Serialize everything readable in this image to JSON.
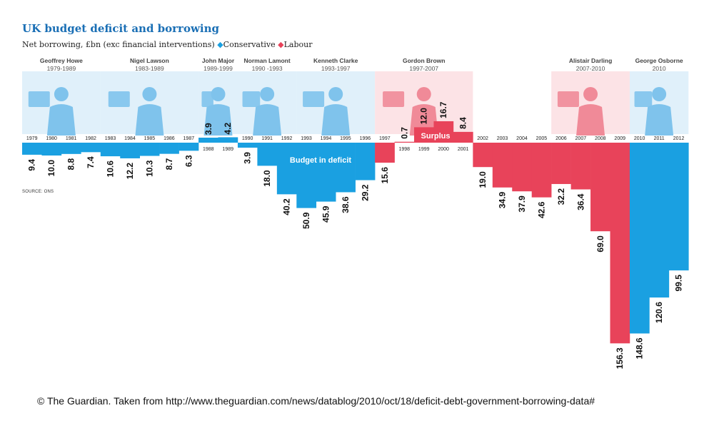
{
  "header": {
    "title": "UK budget deficit and borrowing",
    "subtitle_prefix": "Net borrowing, £bn (exc financial interventions)",
    "legend_conservative": "Conservative",
    "legend_labour": "Labour"
  },
  "colors": {
    "conservative": "#1aa0e1",
    "labour": "#e8435a",
    "conservative_portrait_bg": "#d6ebf8",
    "labour_portrait_bg": "#fbd9de",
    "title": "#1a6fb5"
  },
  "annotations": {
    "deficit_label": "Budget in deficit",
    "surplus_label": "Surplus",
    "source": "SOURCE: ONS"
  },
  "chancellors": [
    {
      "name": "Geoffrey Howe",
      "years": "1979-1989",
      "party": "conservative",
      "start": "1979",
      "end": "1982"
    },
    {
      "name": "Nigel Lawson",
      "years": "1983-1989",
      "party": "conservative",
      "start": "1983",
      "end": "1987"
    },
    {
      "name": "John Major",
      "years": "1989-1999",
      "party": "conservative",
      "start": "1988",
      "end": "1989"
    },
    {
      "name": "Norman Lamont",
      "years": "1990 -1993",
      "party": "conservative",
      "start": "1990",
      "end": "1992"
    },
    {
      "name": "Kenneth Clarke",
      "years": "1993-1997",
      "party": "conservative",
      "start": "1993",
      "end": "1996"
    },
    {
      "name": "Gordon Brown",
      "years": "1997-2007",
      "party": "labour",
      "start": "1997",
      "end": "2001"
    },
    {
      "name": "Alistair Darling",
      "years": "2007-2010",
      "party": "labour",
      "start": "2006",
      "end": "2009"
    },
    {
      "name": "George Osborne",
      "years": "2010",
      "party": "conservative",
      "start": "2010",
      "end": "2012"
    }
  ],
  "chart_data": {
    "type": "bar",
    "title": "UK budget deficit and borrowing",
    "subtitle": "Net borrowing, £bn (exc financial interventions)",
    "categories": [
      "1979",
      "1980",
      "1981",
      "1982",
      "1983",
      "1984",
      "1985",
      "1986",
      "1987",
      "1988",
      "1989",
      "1990",
      "1991",
      "1992",
      "1993",
      "1994",
      "1995",
      "1996",
      "1997",
      "1998",
      "1999",
      "2000",
      "2001",
      "2002",
      "2003",
      "2004",
      "2005",
      "2006",
      "2007",
      "2008",
      "2009",
      "2010",
      "2011",
      "2012"
    ],
    "values": [
      9.4,
      10.0,
      8.8,
      7.4,
      10.6,
      12.2,
      10.3,
      8.7,
      6.3,
      -3.9,
      -4.2,
      3.9,
      18.0,
      40.2,
      50.9,
      45.9,
      38.6,
      29.2,
      15.6,
      -0.7,
      -12.0,
      -16.7,
      -8.4,
      19.0,
      34.9,
      37.9,
      42.6,
      32.2,
      36.4,
      69.0,
      156.3,
      148.6,
      120.6,
      99.5
    ],
    "labels": [
      "9.4",
      "10.0",
      "8.8",
      "7.4",
      "10.6",
      "12.2",
      "10.3",
      "8.7",
      "6.3",
      "3.9",
      "4.2",
      "3.9",
      "18.0",
      "40.2",
      "50.9",
      "45.9",
      "38.6",
      "29.2",
      "15.6",
      "0.7",
      "12.0",
      "16.7",
      "8.4",
      "19.0",
      "34.9",
      "37.9",
      "42.6",
      "32.2",
      "36.4",
      "69.0",
      "156.3",
      "148.6",
      "120.6",
      "99.5"
    ],
    "party": [
      "conservative",
      "conservative",
      "conservative",
      "conservative",
      "conservative",
      "conservative",
      "conservative",
      "conservative",
      "conservative",
      "conservative",
      "conservative",
      "conservative",
      "conservative",
      "conservative",
      "conservative",
      "conservative",
      "conservative",
      "conservative",
      "labour",
      "labour",
      "labour",
      "labour",
      "labour",
      "labour",
      "labour",
      "labour",
      "labour",
      "labour",
      "labour",
      "labour",
      "labour",
      "conservative",
      "conservative",
      "conservative"
    ],
    "legend": [
      "Conservative",
      "Labour"
    ],
    "legend_position": "top-left"
  },
  "footer": {
    "credit": "© The Guardian. Taken from http://www.theguardian.com/news/datablog/2010/oct/18/deficit-debt-government-borrowing-data#"
  }
}
